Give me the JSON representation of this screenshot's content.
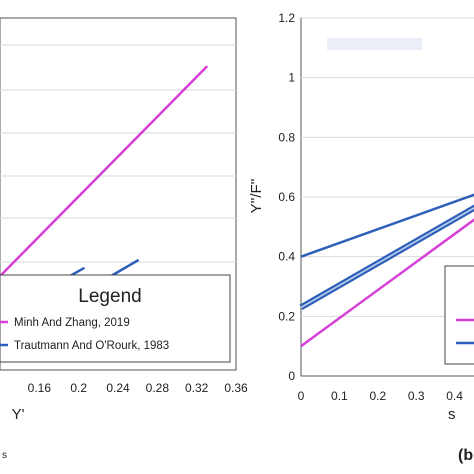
{
  "chart_data": [
    {
      "type": "line",
      "title": "",
      "xlabel": "Y'",
      "ylabel": "",
      "xlim": [
        0.12,
        0.36
      ],
      "x_ticks": [
        "0.16",
        "0.2",
        "0.24",
        "0.28",
        "0.32",
        "0.36"
      ],
      "x_ticks_values": [
        0.16,
        0.2,
        0.24,
        0.28,
        0.32,
        0.36
      ],
      "grid": true,
      "legend": {
        "title": "Legend",
        "placement": "bottom-right",
        "entries": [
          {
            "label": "Minh And Zhang, 2019",
            "color": "#d63fd6"
          },
          {
            "label": "Trautmann And O'Rourk, 1983",
            "color": "#2e5fb8"
          }
        ]
      },
      "series": [
        {
          "name": "Minh And Zhang, 2019",
          "color": "#d63fd6",
          "x": [
            0.12,
            0.33
          ],
          "y": [
            0.78,
            1.85
          ]
        },
        {
          "name": "Trautmann And O'Rourk, 1983",
          "color": "#2e5fb8",
          "x": [
            0.12,
            0.205
          ],
          "y": [
            0.58,
            0.82
          ]
        },
        {
          "name": "Trautmann And O'Rourk, 1983",
          "color": "#2e5fb8",
          "x": [
            0.12,
            0.26
          ],
          "y": [
            0.45,
            0.86
          ]
        }
      ],
      "ylim": [
        0.3,
        2.1
      ]
    },
    {
      "type": "line",
      "title": "",
      "xlabel": "",
      "ylabel": "Y''/F''",
      "xlim": [
        0,
        0.5
      ],
      "ylim": [
        0,
        1.2
      ],
      "x_ticks": [
        "0",
        "0.1",
        "0.2",
        "0.3",
        "0.4"
      ],
      "x_ticks_values": [
        0,
        0.1,
        0.2,
        0.3,
        0.4
      ],
      "y_ticks": [
        "0",
        "0.2",
        "0.4",
        "0.6",
        "0.8",
        "1",
        "1.2"
      ],
      "y_ticks_values": [
        0,
        0.2,
        0.4,
        0.6,
        0.8,
        1.0,
        1.2
      ],
      "grid": true,
      "series": [
        {
          "color": "#2e5fb8",
          "x": [
            0,
            0.5
          ],
          "y": [
            0.4,
            0.63
          ]
        },
        {
          "color": "#2e5fb8",
          "x": [
            0,
            0.5
          ],
          "y": [
            0.23,
            0.6
          ],
          "band": true
        },
        {
          "color": "#d63fd6",
          "x": [
            0,
            0.5
          ],
          "y": [
            0.1,
            0.57
          ]
        }
      ]
    }
  ],
  "panel_label": "(b",
  "partial_marks": {
    "left_panel_edge": "s",
    "right_xlabel_fragment": "s"
  },
  "colors": {
    "magenta": "#d63fd6",
    "blue": "#2e5fb8",
    "grid": "#d9d9d9",
    "axis": "#333333"
  }
}
